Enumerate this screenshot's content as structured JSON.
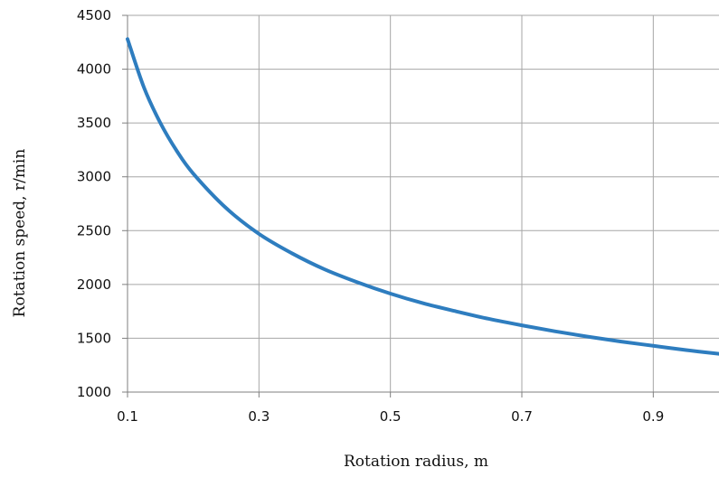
{
  "chart_data": {
    "type": "line",
    "title": "",
    "xlabel": "Rotation radius, m",
    "ylabel": "Rotation speed, r/min",
    "xlim": [
      0.1,
      1.0
    ],
    "ylim": [
      1000,
      4500
    ],
    "x_ticks": [
      "0.1",
      "0.3",
      "0.5",
      "0.7",
      "0.9"
    ],
    "y_ticks": [
      "1000",
      "1500",
      "2000",
      "2500",
      "3000",
      "3500",
      "4000",
      "4500"
    ],
    "grid": true,
    "legend": "none",
    "colors": {
      "series": "#2e7dbf",
      "grid": "#a6a6a6",
      "axis": "#7f7f7f"
    },
    "series": [
      {
        "x": [
          0.1,
          0.125,
          0.15,
          0.175,
          0.2,
          0.25,
          0.3,
          0.35,
          0.4,
          0.45,
          0.5,
          0.55,
          0.6,
          0.65,
          0.7,
          0.75,
          0.8,
          0.85,
          0.9,
          0.95,
          1.0
        ],
        "values": [
          4280,
          3830,
          3500,
          3240,
          3030,
          2710,
          2470,
          2290,
          2140,
          2020,
          1915,
          1825,
          1750,
          1680,
          1620,
          1565,
          1515,
          1470,
          1430,
          1390,
          1355
        ]
      }
    ]
  }
}
